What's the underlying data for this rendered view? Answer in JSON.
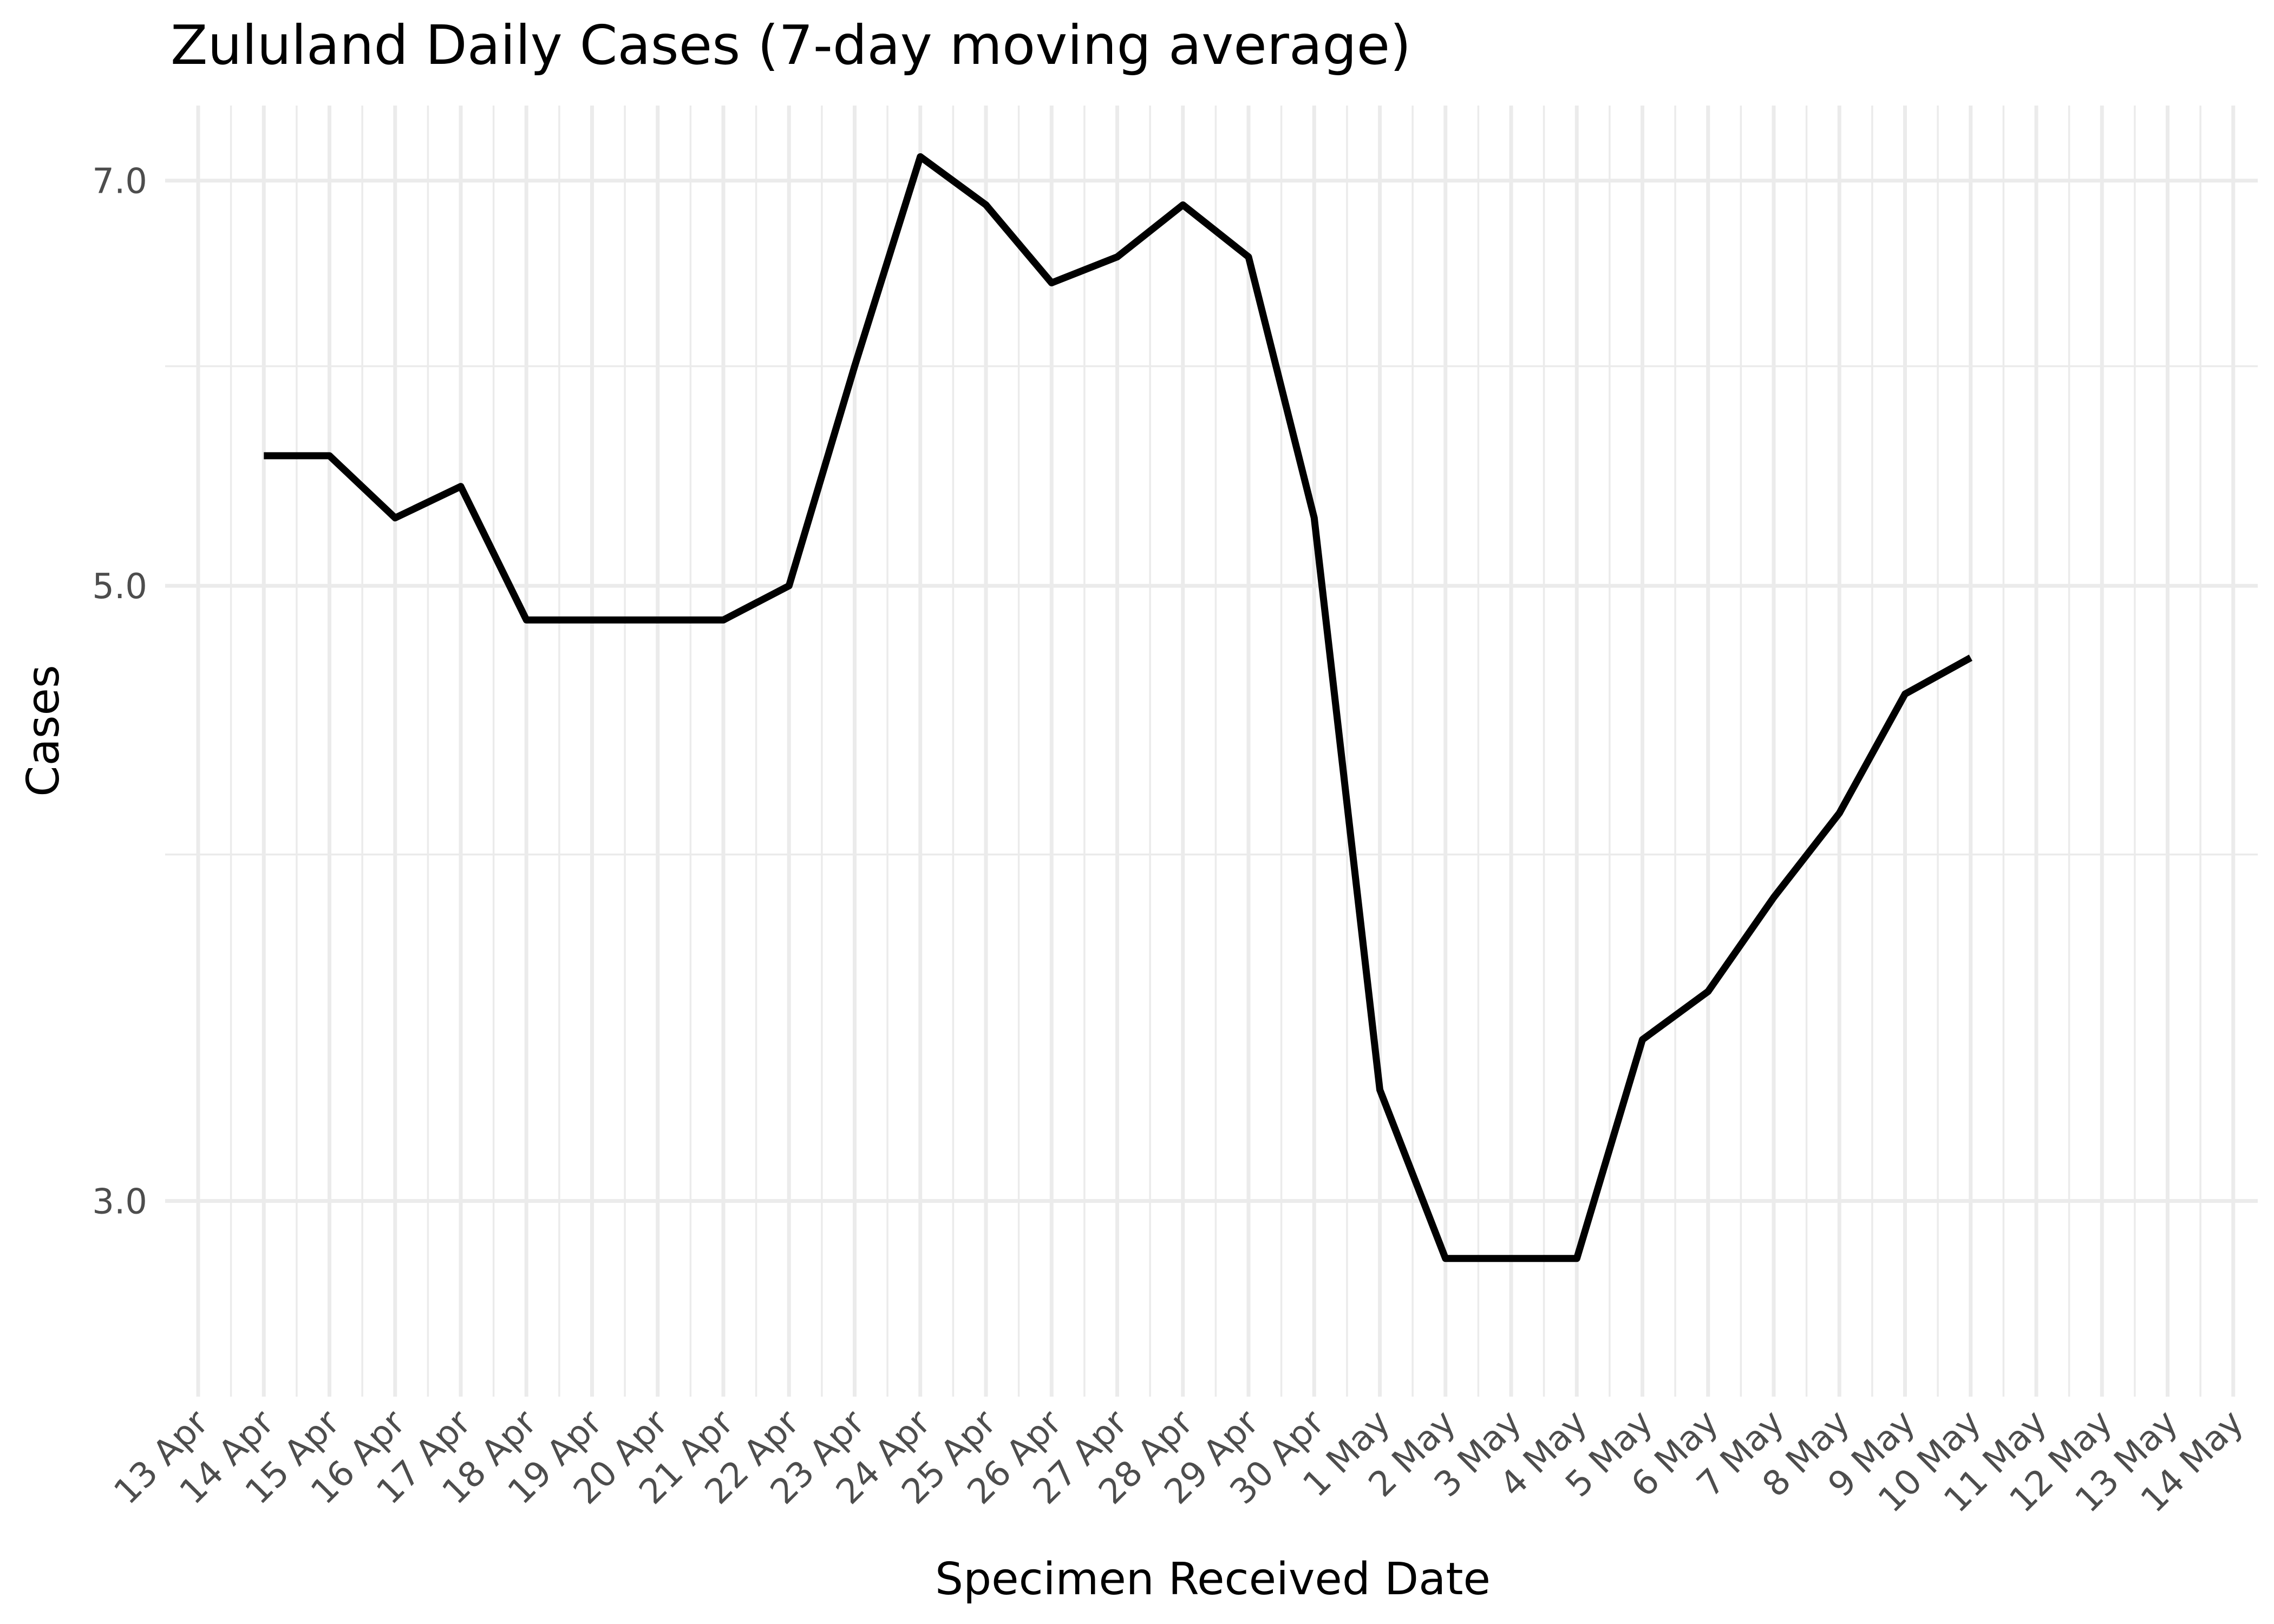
{
  "chart_data": {
    "type": "line",
    "title": "Zululand Daily Cases (7-day moving average)",
    "xlabel": "Specimen Received Date",
    "ylabel": "Cases",
    "y_scale": "log",
    "ylim": [
      2.55,
      7.45
    ],
    "yticks": [
      3.0,
      5.0,
      7.0
    ],
    "ytick_labels": [
      "3.0",
      "5.0",
      "7.0"
    ],
    "y_minor_ticks": [
      4.0,
      6.0
    ],
    "grid": true,
    "x_tick_labels": [
      "13 Apr",
      "14 Apr",
      "15 Apr",
      "16 Apr",
      "17 Apr",
      "18 Apr",
      "19 Apr",
      "20 Apr",
      "21 Apr",
      "22 Apr",
      "23 Apr",
      "24 Apr",
      "25 Apr",
      "26 Apr",
      "27 Apr",
      "28 Apr",
      "29 Apr",
      "30 Apr",
      "1 May",
      "2 May",
      "3 May",
      "4 May",
      "5 May",
      "6 May",
      "7 May",
      "8 May",
      "9 May",
      "10 May",
      "11 May",
      "12 May",
      "13 May",
      "14 May"
    ],
    "x": [
      "14 Apr",
      "15 Apr",
      "16 Apr",
      "17 Apr",
      "18 Apr",
      "19 Apr",
      "20 Apr",
      "21 Apr",
      "22 Apr",
      "23 Apr",
      "24 Apr",
      "25 Apr",
      "26 Apr",
      "27 Apr",
      "28 Apr",
      "29 Apr",
      "30 Apr",
      "1 May",
      "2 May",
      "3 May",
      "4 May",
      "5 May",
      "6 May",
      "7 May",
      "8 May",
      "9 May",
      "10 May"
    ],
    "series": [
      {
        "color": "#000000",
        "values": [
          5.57,
          5.57,
          5.29,
          5.43,
          4.86,
          4.86,
          4.86,
          4.86,
          5.0,
          6.0,
          7.14,
          6.86,
          6.43,
          6.57,
          6.86,
          6.57,
          5.29,
          3.29,
          2.86,
          2.86,
          2.86,
          3.43,
          3.57,
          3.86,
          4.14,
          4.57,
          4.71
        ]
      }
    ]
  }
}
